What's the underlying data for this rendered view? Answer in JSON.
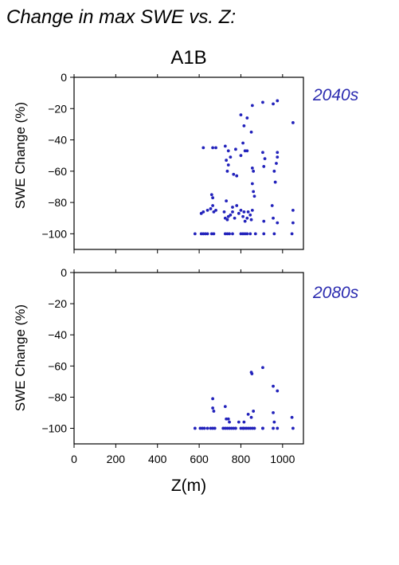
{
  "heading": "Change in max SWE vs. Z:",
  "scenario": "A1B",
  "colors": {
    "points": "#2222bb",
    "period_label": "#2b2bb0",
    "axes": "#000000"
  },
  "chart_data": [
    {
      "type": "scatter",
      "title": "2040s",
      "xlabel": "",
      "ylabel": "SWE Change (%)",
      "xlim": [
        0,
        1100
      ],
      "ylim": [
        -110,
        0
      ],
      "xticks": [],
      "yticks": [
        0,
        -20,
        -40,
        -60,
        -80,
        -100
      ],
      "points": [
        [
          580,
          -100
        ],
        [
          610,
          -100
        ],
        [
          620,
          -100
        ],
        [
          630,
          -100
        ],
        [
          640,
          -100
        ],
        [
          660,
          -100
        ],
        [
          670,
          -100
        ],
        [
          725,
          -100
        ],
        [
          735,
          -100
        ],
        [
          745,
          -100
        ],
        [
          760,
          -100
        ],
        [
          800,
          -100
        ],
        [
          810,
          -100
        ],
        [
          820,
          -100
        ],
        [
          830,
          -100
        ],
        [
          845,
          -100
        ],
        [
          870,
          -100
        ],
        [
          910,
          -100
        ],
        [
          960,
          -100
        ],
        [
          1045,
          -100
        ],
        [
          610,
          -87
        ],
        [
          620,
          -86
        ],
        [
          640,
          -85
        ],
        [
          655,
          -84
        ],
        [
          665,
          -82
        ],
        [
          670,
          -86
        ],
        [
          680,
          -85
        ],
        [
          665,
          -77
        ],
        [
          660,
          -75
        ],
        [
          730,
          -79
        ],
        [
          780,
          -82
        ],
        [
          720,
          -86
        ],
        [
          725,
          -90
        ],
        [
          735,
          -91
        ],
        [
          740,
          -89
        ],
        [
          750,
          -88
        ],
        [
          760,
          -86
        ],
        [
          770,
          -90
        ],
        [
          800,
          -85
        ],
        [
          810,
          -89
        ],
        [
          815,
          -86
        ],
        [
          820,
          -92
        ],
        [
          830,
          -90
        ],
        [
          835,
          -86
        ],
        [
          845,
          -88
        ],
        [
          850,
          -91
        ],
        [
          855,
          -85
        ],
        [
          760,
          -83
        ],
        [
          790,
          -87
        ],
        [
          910,
          -92
        ],
        [
          955,
          -90
        ],
        [
          975,
          -93
        ],
        [
          1050,
          -93
        ],
        [
          620,
          -45
        ],
        [
          665,
          -45
        ],
        [
          680,
          -45
        ],
        [
          725,
          -44
        ],
        [
          740,
          -47
        ],
        [
          775,
          -46
        ],
        [
          730,
          -53
        ],
        [
          740,
          -56
        ],
        [
          750,
          -51
        ],
        [
          765,
          -62
        ],
        [
          780,
          -63
        ],
        [
          735,
          -60
        ],
        [
          800,
          -50
        ],
        [
          810,
          -42
        ],
        [
          820,
          -47
        ],
        [
          830,
          -47
        ],
        [
          855,
          -58
        ],
        [
          860,
          -60
        ],
        [
          855,
          -68
        ],
        [
          860,
          -73
        ],
        [
          865,
          -76
        ],
        [
          905,
          -48
        ],
        [
          910,
          -57
        ],
        [
          915,
          -52
        ],
        [
          960,
          -60
        ],
        [
          965,
          -67
        ],
        [
          975,
          -48
        ],
        [
          975,
          -51
        ],
        [
          970,
          -55
        ],
        [
          950,
          -82
        ],
        [
          1050,
          -85
        ],
        [
          800,
          -24
        ],
        [
          815,
          -31
        ],
        [
          830,
          -26
        ],
        [
          855,
          -18
        ],
        [
          850,
          -35
        ],
        [
          905,
          -16
        ],
        [
          955,
          -17
        ],
        [
          975,
          -15
        ],
        [
          1050,
          -29
        ]
      ]
    },
    {
      "type": "scatter",
      "title": "2080s",
      "xlabel": "Z(m)",
      "ylabel": "SWE Change (%)",
      "xlim": [
        0,
        1100
      ],
      "ylim": [
        -110,
        0
      ],
      "xticks": [
        0,
        200,
        400,
        600,
        800,
        1000
      ],
      "yticks": [
        0,
        -20,
        -40,
        -60,
        -80,
        -100
      ],
      "points": [
        [
          580,
          -100
        ],
        [
          605,
          -100
        ],
        [
          615,
          -100
        ],
        [
          625,
          -100
        ],
        [
          640,
          -100
        ],
        [
          655,
          -100
        ],
        [
          665,
          -100
        ],
        [
          675,
          -100
        ],
        [
          715,
          -100
        ],
        [
          725,
          -100
        ],
        [
          735,
          -100
        ],
        [
          745,
          -100
        ],
        [
          755,
          -100
        ],
        [
          765,
          -100
        ],
        [
          775,
          -100
        ],
        [
          800,
          -100
        ],
        [
          810,
          -100
        ],
        [
          815,
          -100
        ],
        [
          825,
          -100
        ],
        [
          835,
          -100
        ],
        [
          845,
          -100
        ],
        [
          855,
          -100
        ],
        [
          865,
          -100
        ],
        [
          905,
          -100
        ],
        [
          955,
          -100
        ],
        [
          975,
          -100
        ],
        [
          1050,
          -100
        ],
        [
          665,
          -81
        ],
        [
          665,
          -87
        ],
        [
          670,
          -89
        ],
        [
          725,
          -86
        ],
        [
          730,
          -94
        ],
        [
          740,
          -94
        ],
        [
          745,
          -96
        ],
        [
          790,
          -96
        ],
        [
          815,
          -96
        ],
        [
          835,
          -91
        ],
        [
          850,
          -93
        ],
        [
          860,
          -89
        ],
        [
          905,
          -100
        ],
        [
          955,
          -90
        ],
        [
          960,
          -96
        ],
        [
          1045,
          -93
        ],
        [
          850,
          -64
        ],
        [
          853,
          -65
        ],
        [
          905,
          -61
        ],
        [
          955,
          -73
        ],
        [
          975,
          -76
        ]
      ]
    }
  ]
}
